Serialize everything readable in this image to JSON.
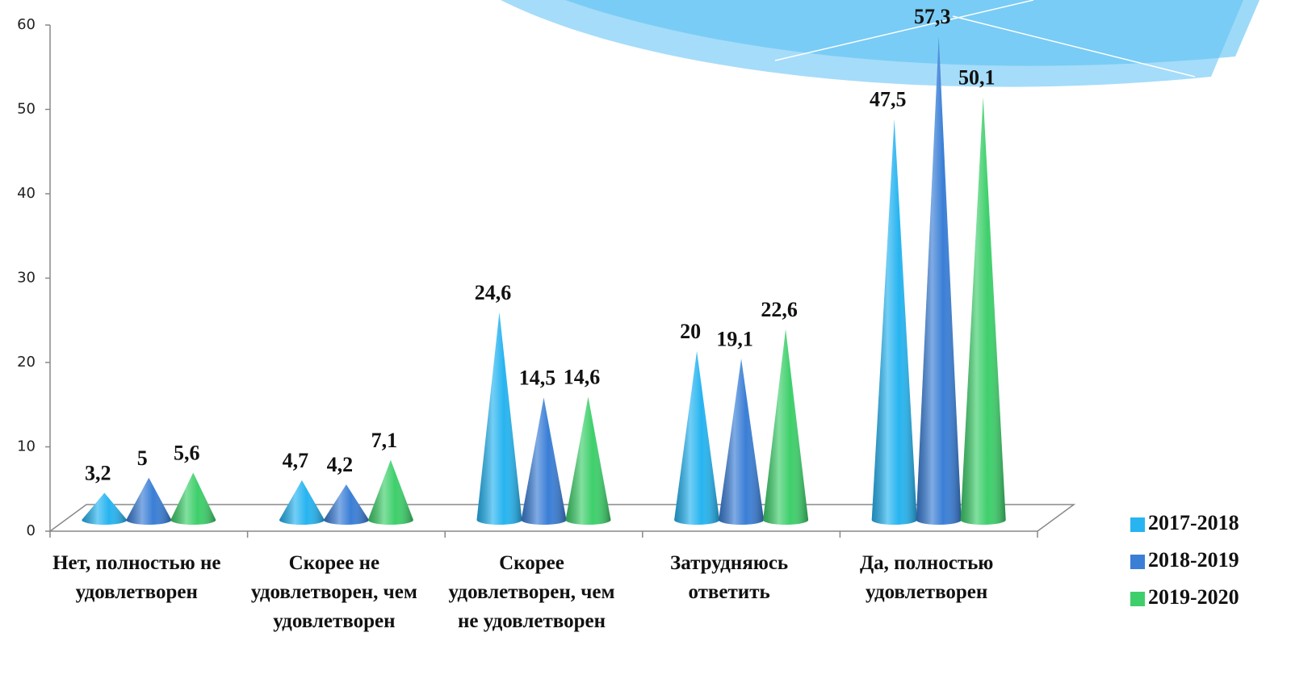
{
  "chart_data": {
    "type": "cone",
    "categories": [
      "Нет, полностью не удовлетворен",
      "Скорее не удовлетворен, чем удовлетворен",
      "Скорее удовлетворен, чем не удовлетворен",
      "Затрудняюсь ответить",
      "Да, полностью удовлетворен"
    ],
    "series": [
      {
        "name": "2017-2018",
        "color": "#27b4f0",
        "values": [
          3.2,
          4.7,
          24.6,
          20,
          47.5
        ],
        "value_labels": [
          "3,2",
          "4,7",
          "24,6",
          "20",
          "47,5"
        ]
      },
      {
        "name": "2018-2019",
        "color": "#3a7ed6",
        "values": [
          5,
          4.2,
          14.5,
          19.1,
          57.3
        ],
        "value_labels": [
          "5",
          "4,2",
          "14,5",
          "19,1",
          "57,3"
        ]
      },
      {
        "name": "2019-2020",
        "color": "#3ecf6b",
        "values": [
          5.6,
          7.1,
          14.6,
          22.6,
          50.1
        ],
        "value_labels": [
          "5,6",
          "7,1",
          "14,6",
          "22,6",
          "50,1"
        ]
      }
    ],
    "ylim": [
      0,
      60
    ],
    "yticks": [
      0,
      10,
      20,
      30,
      40,
      50,
      60
    ],
    "legend": "right"
  }
}
